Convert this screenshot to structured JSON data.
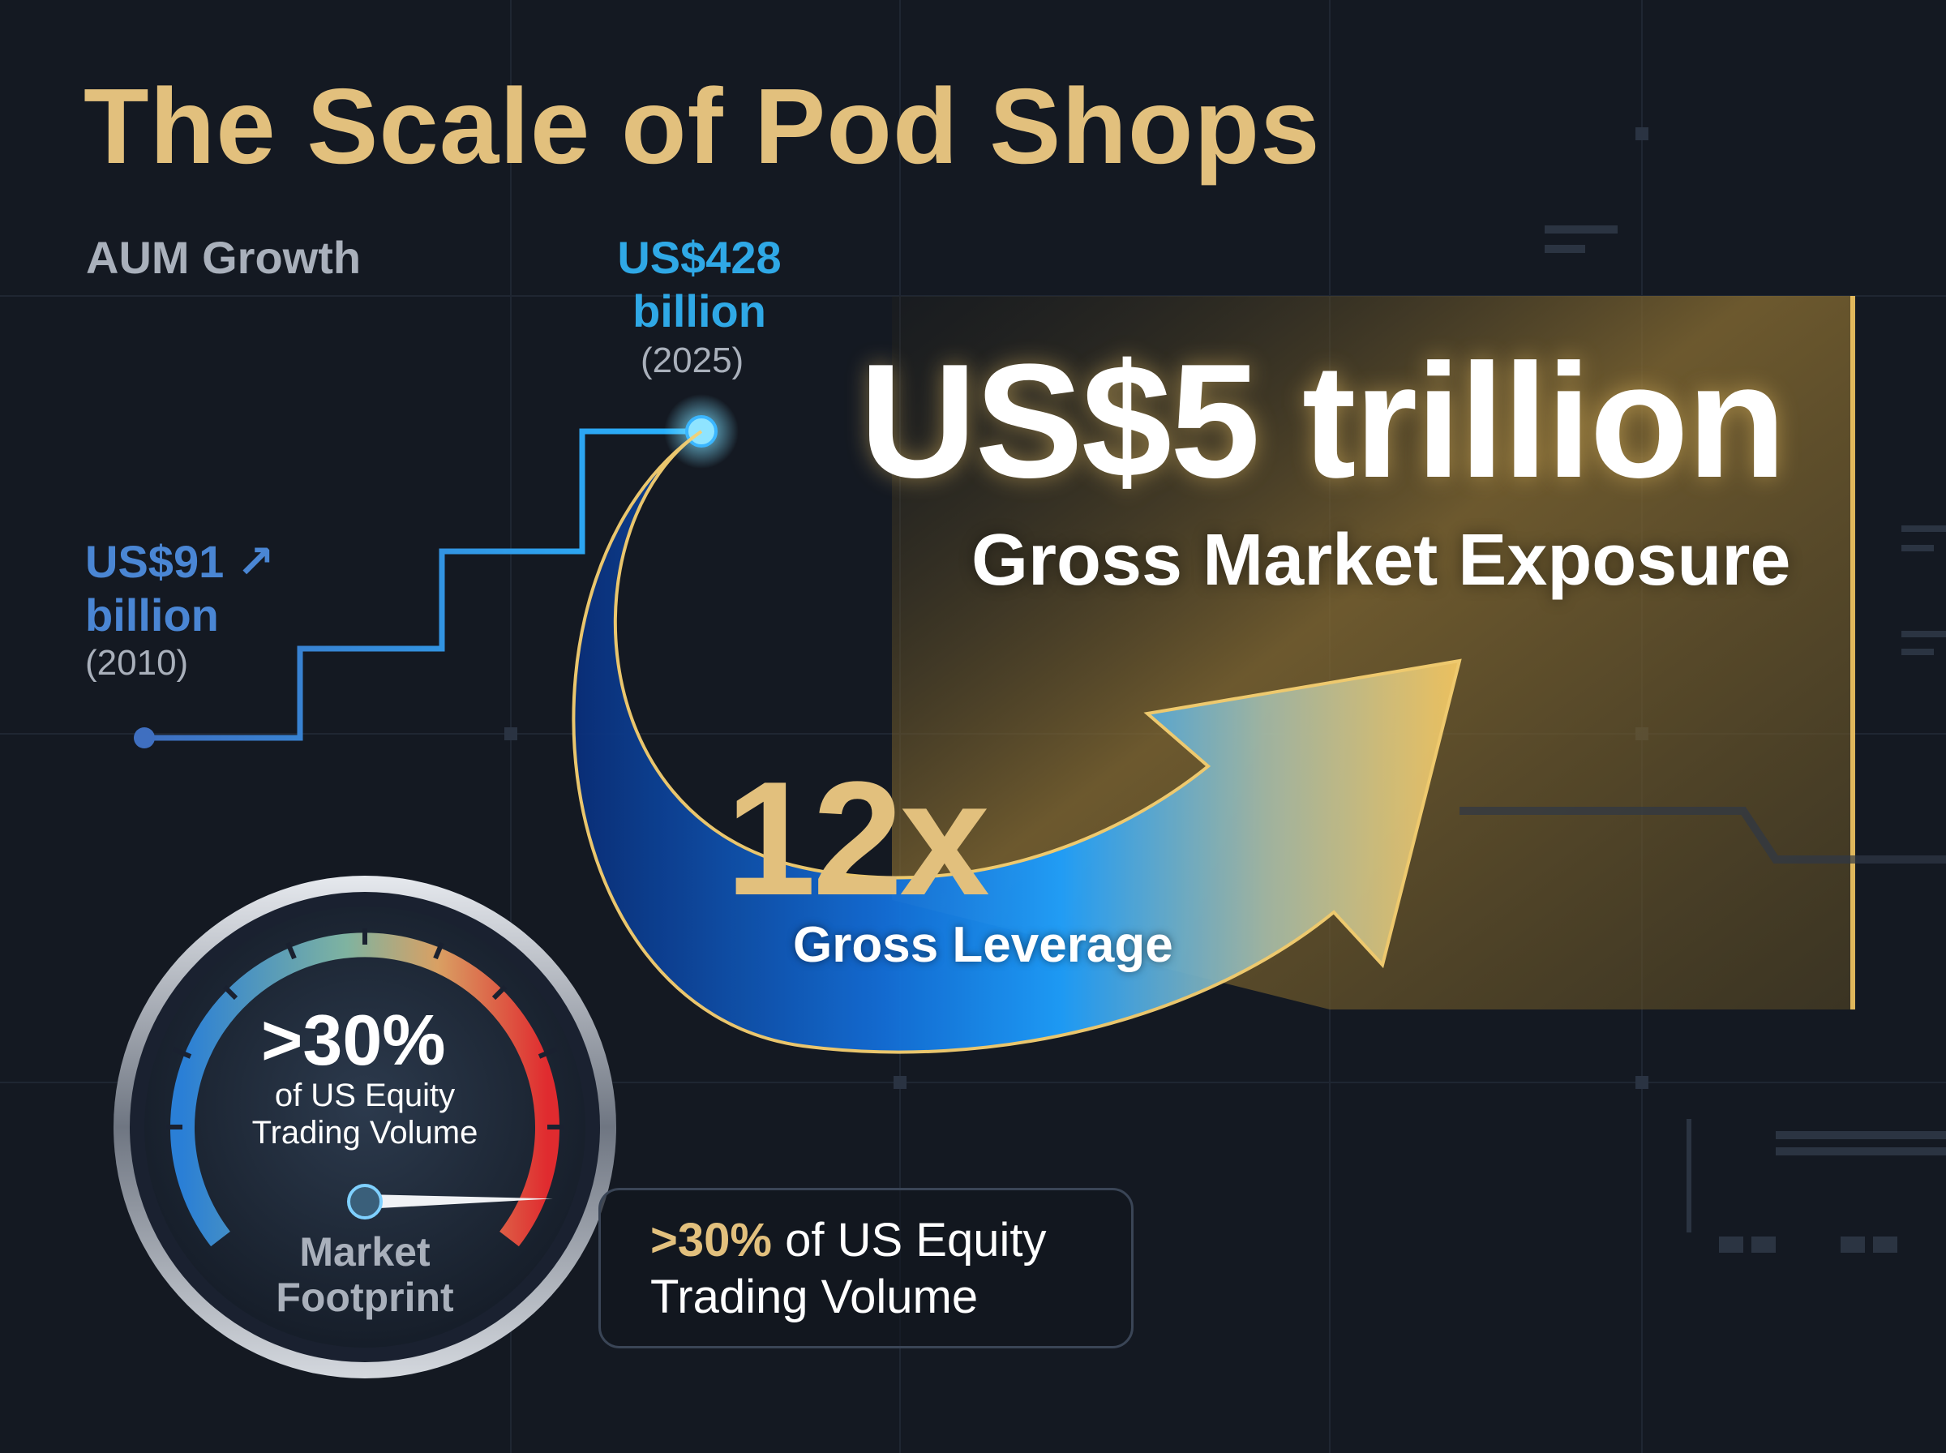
{
  "title": "The Scale of Pod Shops",
  "aum": {
    "label": "AUM Growth",
    "start": {
      "value": "US$91",
      "unit": "billion",
      "year": "(2010)"
    },
    "end": {
      "value": "US$428",
      "unit": "billion",
      "year": "(2025)"
    },
    "arrow_icon": "arrow-up-right-icon"
  },
  "exposure": {
    "amount": "US$5 trillion",
    "label": "Gross Market Exposure"
  },
  "leverage": {
    "amount": "12x",
    "label": "Gross Leverage"
  },
  "gauge": {
    "percent": ">30%",
    "description": "of US Equity Trading Volume",
    "label": "Market Footprint",
    "level": 0.83
  },
  "callout": {
    "highlight": ">30%",
    "text_line1": " of US Equity",
    "text_line2": "Trading Volume"
  },
  "colors": {
    "gold": "#e2c07d",
    "blue_light": "#2fa8e6",
    "blue_mid": "#4a86d4",
    "white": "#ffffff",
    "gray": "#a9b0bb",
    "background": "#141922",
    "red": "#e0292f"
  }
}
